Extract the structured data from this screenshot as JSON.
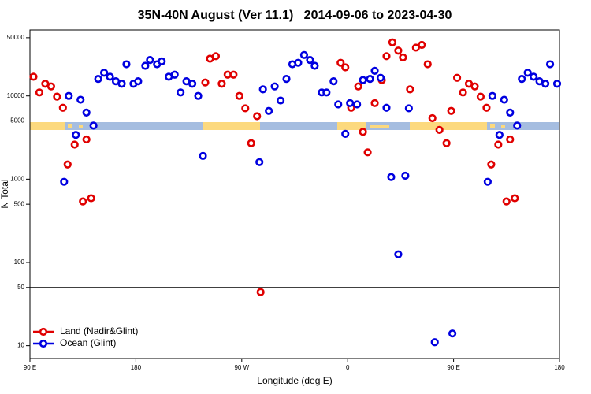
{
  "chart_data": {
    "type": "scatter",
    "title": "35N-40N August (Ver 11.1)   2014-09-06 to 2023-04-30",
    "x_label": "Longitude (deg E)",
    "y_label": "N Total",
    "log_y": true,
    "legend": "lower left",
    "hline": 50,
    "xlim": [
      90,
      540
    ],
    "xticks": [
      {
        "value": 90,
        "label": "90 E"
      },
      {
        "value": 180,
        "label": "180"
      },
      {
        "value": 270,
        "label": "90 W"
      },
      {
        "value": 360,
        "label": "0"
      },
      {
        "value": 450,
        "label": "90 E"
      },
      {
        "value": 540,
        "label": "180"
      }
    ],
    "ylim": [
      7,
      62000
    ],
    "yticks": [
      10,
      50,
      100,
      500,
      1000,
      5000,
      10000,
      50000
    ],
    "series": [
      {
        "name": "Land (Nadir&Glint)",
        "color": "#e00000",
        "x": [
          93,
          98,
          103,
          108,
          113,
          118,
          122,
          128,
          135,
          138,
          142,
          239,
          243,
          248,
          253,
          258,
          263,
          268,
          273,
          278,
          283,
          286,
          354,
          358,
          363,
          369,
          373,
          377,
          383,
          389,
          393,
          398,
          403,
          407,
          413,
          418,
          423,
          428,
          432,
          438,
          444,
          448,
          453,
          458,
          463,
          468,
          473,
          478,
          482,
          488,
          495,
          498,
          502
        ],
        "values": [
          17000,
          11000,
          14000,
          13000,
          9800,
          7200,
          1500,
          2600,
          540,
          3000,
          590,
          14500,
          28000,
          30000,
          14000,
          18000,
          18000,
          10000,
          7100,
          2700,
          5700,
          44,
          25000,
          22000,
          7200,
          13000,
          3700,
          2100,
          8200,
          15500,
          30000,
          44000,
          35000,
          29000,
          12000,
          38000,
          41000,
          24000,
          5400,
          3900,
          2700,
          6600,
          16500,
          11000,
          14000,
          13000,
          9800,
          7200,
          1500,
          2600,
          540,
          3000,
          590
        ]
      },
      {
        "name": "Ocean (Glint)",
        "color": "#0000e0",
        "x": [
          119,
          123,
          129,
          133,
          138,
          144,
          148,
          153,
          158,
          163,
          168,
          172,
          178,
          182,
          188,
          192,
          198,
          202,
          208,
          213,
          218,
          223,
          228,
          233,
          237,
          285,
          288,
          293,
          298,
          303,
          308,
          313,
          318,
          323,
          328,
          332,
          338,
          342,
          348,
          352,
          358,
          362,
          368,
          373,
          379,
          383,
          388,
          393,
          397,
          403,
          409,
          412,
          434,
          449,
          479,
          483,
          489,
          493,
          498,
          504,
          508,
          513,
          518,
          523,
          528,
          532,
          538
        ],
        "values": [
          930,
          10000,
          3400,
          9000,
          6300,
          4400,
          16000,
          19000,
          17000,
          15000,
          14000,
          24000,
          14000,
          15000,
          23000,
          27000,
          24000,
          26000,
          17000,
          18000,
          11000,
          15000,
          14000,
          10000,
          1900,
          1600,
          12000,
          6600,
          13000,
          8800,
          16000,
          24000,
          25000,
          31000,
          27000,
          23000,
          11000,
          11000,
          15000,
          7900,
          3500,
          8200,
          7900,
          15500,
          16000,
          20000,
          16500,
          7200,
          1060,
          125,
          1100,
          7100,
          11,
          14,
          930,
          10000,
          3400,
          9000,
          6300,
          4400,
          16000,
          19000,
          17000,
          15000,
          14000,
          24000,
          14000
        ]
      }
    ]
  }
}
